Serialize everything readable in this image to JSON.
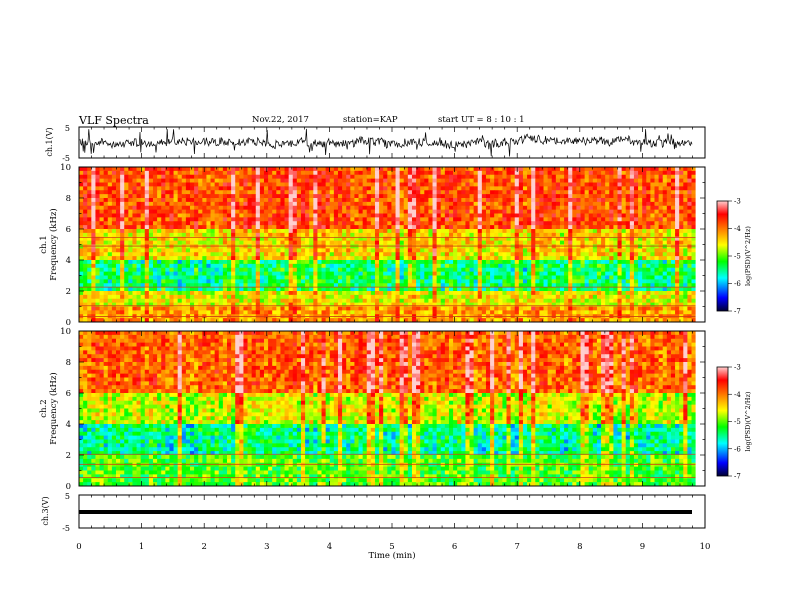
{
  "header": {
    "title": "VLF Spectra",
    "date": "Nov.22, 2017",
    "station": "station=KAP",
    "start": "start  UT =  8 : 10 : 1"
  },
  "chart_data": [
    {
      "type": "line",
      "panel": "ch1-waveform",
      "ylabel": "ch.1(V)",
      "ylim": [
        -5,
        5
      ],
      "ytick_labels": [
        "5",
        "-5"
      ],
      "xlim": [
        0,
        10
      ],
      "series_color": "#000000",
      "trace": "dense noisy waveform oscillating around 0 V, amplitude about ±3 V with spikes"
    },
    {
      "type": "heatmap",
      "panel": "ch1-spectrogram",
      "ylabel": "ch.1 Frequency (kHz)",
      "ylim": [
        0,
        10
      ],
      "ytick_labels": [
        "0",
        "2",
        "4",
        "6",
        "8",
        "10"
      ],
      "xlim": [
        0,
        9.85
      ],
      "colorbar": {
        "label": "log(PSD)(V^2/Hz)",
        "range": [
          -7,
          -3
        ],
        "tick_labels": [
          "-3",
          "-4",
          "-5",
          "-6",
          "-7"
        ],
        "colors": [
          "#000033",
          "#0000ff",
          "#00ffff",
          "#00ff00",
          "#ffff00",
          "#ff8000",
          "#ff0000",
          "#ffd0d0"
        ]
      },
      "levels_by_band": [
        {
          "freq_kHz": [
            0,
            1
          ],
          "logPSD": -4.3
        },
        {
          "freq_kHz": [
            1,
            2
          ],
          "logPSD": -4.7
        },
        {
          "freq_kHz": [
            2,
            4
          ],
          "logPSD": -5.5
        },
        {
          "freq_kHz": [
            4,
            6
          ],
          "logPSD": -4.6
        },
        {
          "freq_kHz": [
            6,
            10
          ],
          "logPSD": -3.9
        }
      ],
      "horizontal_lines_kHz": [
        0.35,
        1.05,
        2.25,
        5.45,
        4.9
      ]
    },
    {
      "type": "heatmap",
      "panel": "ch2-spectrogram",
      "ylabel": "ch.2 Frequency (kHz)",
      "ylim": [
        0,
        10
      ],
      "ytick_labels": [
        "0",
        "2",
        "4",
        "6",
        "8",
        "10"
      ],
      "xlim": [
        0,
        9.85
      ],
      "colorbar": {
        "label": "log(PSD)(V^2/Hz)",
        "range": [
          -7,
          -3
        ],
        "tick_labels": [
          "-3",
          "-4",
          "-5",
          "-6",
          "-7"
        ],
        "colors": [
          "#000033",
          "#0000ff",
          "#00ffff",
          "#00ff00",
          "#ffff00",
          "#ff8000",
          "#ff0000",
          "#ffd0d0"
        ]
      },
      "levels_by_band": [
        {
          "freq_kHz": [
            0,
            2
          ],
          "logPSD": -5.2
        },
        {
          "freq_kHz": [
            2,
            4
          ],
          "logPSD": -5.6
        },
        {
          "freq_kHz": [
            4,
            6
          ],
          "logPSD": -4.8
        },
        {
          "freq_kHz": [
            6,
            10
          ],
          "logPSD": -4.0
        }
      ],
      "horizontal_lines_kHz": [
        2.05,
        1.4,
        0.55
      ]
    },
    {
      "type": "line",
      "panel": "ch3-waveform",
      "ylabel": "ch.3(V)",
      "ylim": [
        -5,
        5
      ],
      "ytick_labels": [
        "5",
        "-5"
      ],
      "xlim": [
        0,
        10
      ],
      "series_color": "#000000",
      "trace": "flat thick line near -1 V"
    }
  ],
  "xaxis": {
    "xlabel": "Time (min)",
    "xlim": [
      0,
      10
    ],
    "tick_labels": [
      "0",
      "1",
      "2",
      "3",
      "4",
      "5",
      "6",
      "7",
      "8",
      "9",
      "10"
    ]
  }
}
